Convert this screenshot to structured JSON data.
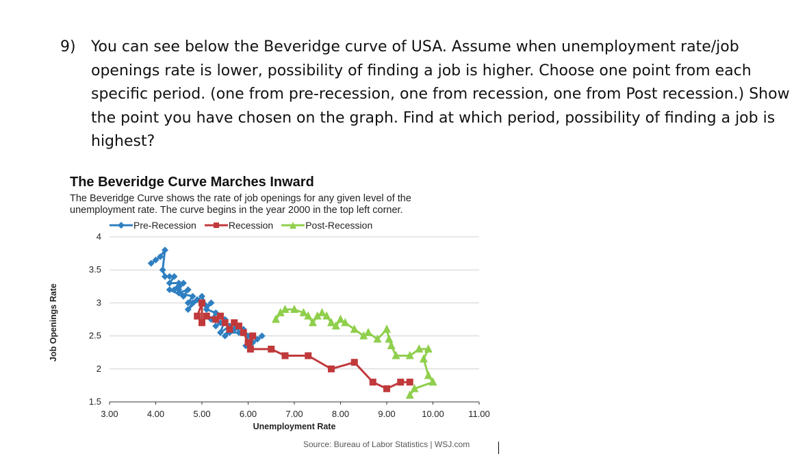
{
  "question": {
    "number": "9)",
    "text": "You can see below the Beveridge curve of USA. Assume when unemployment rate/job openings rate is lower, possibility of finding a job is higher. Choose one point from each specific period. (one from pre-recession, one from recession, one from Post recession.) Show the point you have chosen on the graph. Find at which period, possibility of finding a job is highest?"
  },
  "colors": {
    "pre_recession": "#2f7fc1",
    "recession": "#c0393b",
    "post_recession": "#8fcf4c",
    "grid": "#d0d0d0"
  },
  "chart_data": {
    "type": "line",
    "title": "The Beveridge Curve Marches Inward",
    "subtitle": "The Beveridge Curve shows the rate of job openings for any given level of the unemployment rate. The curve begins in the year 2000 in the top left corner.",
    "xlabel": "Unemployment Rate",
    "ylabel": "Job Openings Rate",
    "xlim": [
      3.0,
      11.0
    ],
    "ylim": [
      1.5,
      4.0
    ],
    "xticks": [
      "3.00",
      "4.00",
      "5.00",
      "6.00",
      "7.00",
      "8.00",
      "9.00",
      "10.00",
      "11.00"
    ],
    "yticks": [
      "1.5",
      "2",
      "2.5",
      "3",
      "3.5",
      "4"
    ],
    "grid": "horizontal",
    "legend_position": "top",
    "source": "Source: Bureau of Labor Statistics | WSJ.com",
    "series": [
      {
        "name": "Pre-Recession",
        "marker": "diamond",
        "points": [
          [
            3.9,
            3.6
          ],
          [
            4.0,
            3.65
          ],
          [
            4.1,
            3.7
          ],
          [
            4.2,
            3.8
          ],
          [
            4.15,
            3.5
          ],
          [
            4.2,
            3.4
          ],
          [
            4.3,
            3.4
          ],
          [
            4.4,
            3.4
          ],
          [
            4.3,
            3.3
          ],
          [
            4.5,
            3.3
          ],
          [
            4.4,
            3.2
          ],
          [
            4.6,
            3.3
          ],
          [
            4.5,
            3.2
          ],
          [
            4.3,
            3.2
          ],
          [
            4.6,
            3.1
          ],
          [
            4.7,
            3.2
          ],
          [
            4.5,
            3.15
          ],
          [
            4.8,
            3.1
          ],
          [
            4.7,
            3.0
          ],
          [
            4.9,
            3.05
          ],
          [
            4.8,
            3.0
          ],
          [
            4.7,
            2.9
          ],
          [
            5.0,
            3.1
          ],
          [
            5.1,
            2.95
          ],
          [
            5.2,
            3.0
          ],
          [
            5.1,
            2.9
          ],
          [
            5.3,
            2.85
          ],
          [
            5.2,
            2.75
          ],
          [
            5.4,
            2.7
          ],
          [
            5.3,
            2.65
          ],
          [
            5.5,
            2.75
          ],
          [
            5.4,
            2.55
          ],
          [
            5.6,
            2.65
          ],
          [
            5.5,
            2.5
          ],
          [
            5.7,
            2.6
          ],
          [
            5.6,
            2.55
          ],
          [
            5.8,
            2.55
          ],
          [
            5.75,
            2.65
          ],
          [
            5.9,
            2.6
          ],
          [
            6.0,
            2.5
          ],
          [
            5.95,
            2.35
          ],
          [
            6.1,
            2.4
          ],
          [
            6.2,
            2.45
          ],
          [
            6.3,
            2.5
          ]
        ]
      },
      {
        "name": "Recession",
        "marker": "square",
        "points": [
          [
            4.9,
            2.8
          ],
          [
            5.0,
            3.0
          ],
          [
            5.0,
            2.7
          ],
          [
            5.1,
            2.8
          ],
          [
            5.3,
            2.75
          ],
          [
            5.4,
            2.8
          ],
          [
            5.5,
            2.7
          ],
          [
            5.6,
            2.6
          ],
          [
            5.7,
            2.7
          ],
          [
            5.8,
            2.65
          ],
          [
            5.9,
            2.55
          ],
          [
            6.0,
            2.4
          ],
          [
            6.1,
            2.5
          ],
          [
            6.05,
            2.3
          ],
          [
            6.5,
            2.3
          ],
          [
            6.8,
            2.2
          ],
          [
            7.3,
            2.2
          ],
          [
            7.8,
            2.0
          ],
          [
            8.3,
            2.1
          ],
          [
            8.7,
            1.8
          ],
          [
            9.0,
            1.7
          ],
          [
            9.3,
            1.8
          ],
          [
            9.5,
            1.8
          ]
        ]
      },
      {
        "name": "Post-Recession",
        "marker": "triangle",
        "points": [
          [
            6.6,
            2.75
          ],
          [
            6.7,
            2.85
          ],
          [
            6.8,
            2.9
          ],
          [
            7.0,
            2.9
          ],
          [
            7.2,
            2.85
          ],
          [
            7.3,
            2.8
          ],
          [
            7.4,
            2.7
          ],
          [
            7.5,
            2.8
          ],
          [
            7.6,
            2.85
          ],
          [
            7.7,
            2.8
          ],
          [
            7.8,
            2.7
          ],
          [
            7.9,
            2.65
          ],
          [
            8.0,
            2.75
          ],
          [
            8.1,
            2.7
          ],
          [
            8.3,
            2.6
          ],
          [
            8.5,
            2.5
          ],
          [
            8.6,
            2.55
          ],
          [
            8.8,
            2.45
          ],
          [
            9.0,
            2.6
          ],
          [
            9.05,
            2.45
          ],
          [
            9.1,
            2.35
          ],
          [
            9.2,
            2.2
          ],
          [
            9.5,
            2.2
          ],
          [
            9.7,
            2.3
          ],
          [
            9.9,
            2.3
          ],
          [
            9.8,
            2.15
          ],
          [
            9.9,
            1.9
          ],
          [
            10.0,
            1.8
          ],
          [
            9.6,
            1.7
          ],
          [
            9.5,
            1.6
          ]
        ]
      }
    ]
  }
}
